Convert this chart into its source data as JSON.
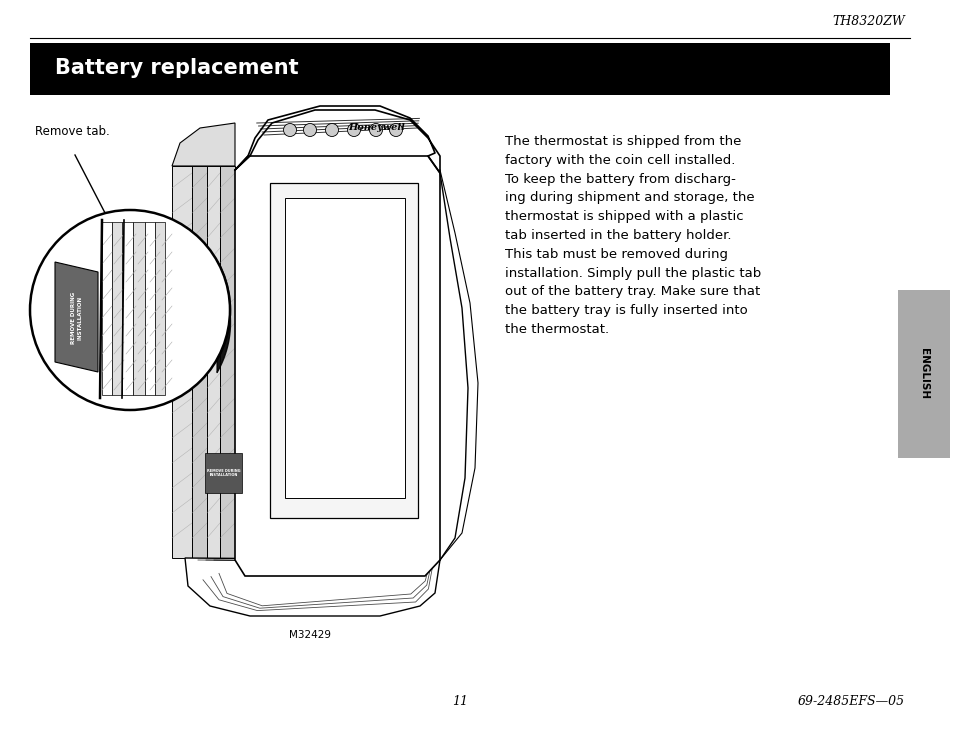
{
  "bg_color": "#ffffff",
  "page_width": 9.54,
  "page_height": 7.38,
  "top_model_text": "TH8320ZW",
  "header_title": "Battery replacement",
  "header_bg": "#000000",
  "header_text_color": "#ffffff",
  "remove_tab_label": "Remove tab.",
  "figure_caption": "M32429",
  "body_text": "The thermostat is shipped from the\nfactory with the coin cell installed.\nTo keep the battery from discharg-\ning during shipment and storage, the\nthermostat is shipped with a plastic\ntab inserted in the battery holder.\nThis tab must be removed during\ninstallation. Simply pull the plastic tab\nout of the battery tray. Make sure that\nthe battery tray is fully inserted into\nthe thermostat.",
  "side_tab_text": "ENGLISH",
  "side_tab_bg": "#aaaaaa",
  "footer_page": "11",
  "footer_ref": "69-2485EFS—05",
  "top_line_color": "#000000"
}
